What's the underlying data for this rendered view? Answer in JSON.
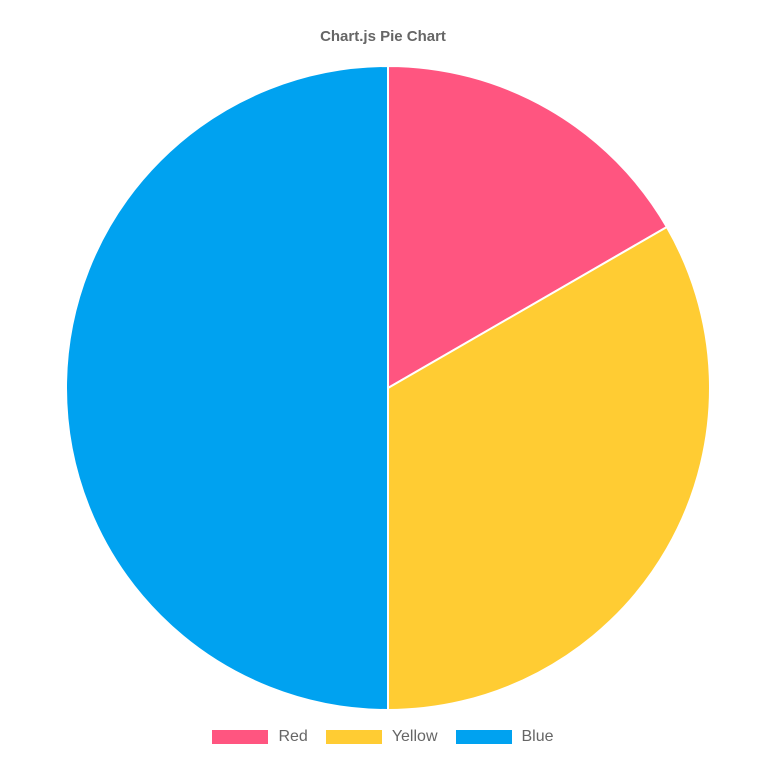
{
  "chart_data": {
    "type": "pie",
    "title": "Chart.js Pie Chart",
    "categories": [
      "Red",
      "Yellow",
      "Blue"
    ],
    "values": [
      50,
      100,
      150
    ],
    "colors": [
      "#ff5580",
      "#ffcc33",
      "#00a2f0"
    ],
    "legend_position": "bottom"
  }
}
